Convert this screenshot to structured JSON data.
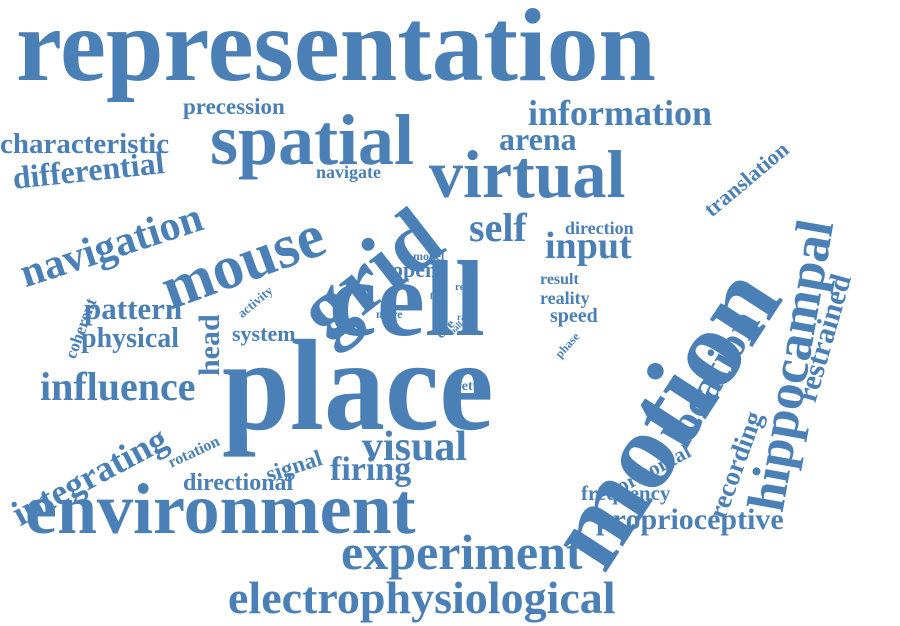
{
  "color": "#4a80b6",
  "words": {
    "representation": "representation",
    "precession": "precession",
    "information": "information",
    "characteristic": "characteristic",
    "spatial": "spatial",
    "arena": "arena",
    "translation": "translation",
    "differential": "differential",
    "navigate": "navigate",
    "virtual": "virtual",
    "hippocampal": "hippocampal",
    "navigation": "navigation",
    "mouse": "mouse",
    "grid": "grid",
    "self": "self",
    "direction": "direction",
    "input": "input",
    "motion": "motion",
    "restrained": "restrained",
    "model": "model",
    "open": "open",
    "cell": "cell",
    "coherent": "coherent",
    "pattern": "pattern",
    "activity": "activity",
    "fire": "fire",
    "real": "real",
    "result": "result",
    "reality": "reality",
    "more": "more",
    "cue": "cue",
    "rate": "rate",
    "ball": "ball",
    "speed": "speed",
    "phase": "phase",
    "head": "head",
    "physical": "physical",
    "system": "system",
    "place": "place",
    "location": "location",
    "influence": "influence",
    "better": "better",
    "recording": "recording",
    "integrating": "integrating",
    "rotation": "rotation",
    "signal": "signal",
    "visual": "visual",
    "horizontal": "horizontal",
    "directional": "directional",
    "firing": "firing",
    "frequency": "frequency",
    "environment": "environment",
    "proprioceptive": "proprioceptive",
    "experiment": "experiment",
    "electrophysiological": "electrophysiological"
  }
}
